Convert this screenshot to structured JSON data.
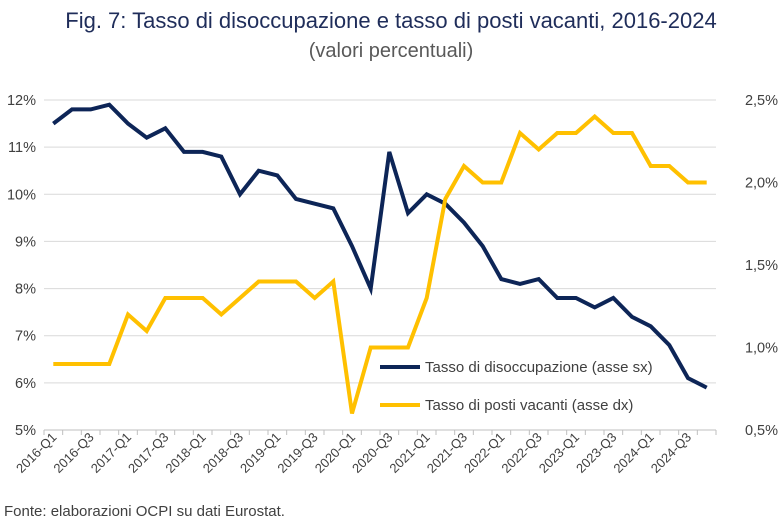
{
  "header": {
    "title": "Fig. 7: Tasso di disoccupazione e tasso di posti vacanti, 2016-2024",
    "subtitle": "(valori percentuali)"
  },
  "footer": {
    "source": "Fonte: elaborazioni OCPI su dati Eurostat."
  },
  "colors": {
    "unemployment": "#0d2557",
    "vacancy": "#ffc000",
    "grid": "#d9d9d9"
  },
  "chart_data": {
    "type": "line",
    "title": "Fig. 7: Tasso di disoccupazione e tasso di posti vacanti, 2016-2024",
    "subtitle": "(valori percentuali)",
    "categories": [
      "2016-Q1",
      "2016-Q2",
      "2016-Q3",
      "2016-Q4",
      "2017-Q1",
      "2017-Q2",
      "2017-Q3",
      "2017-Q4",
      "2018-Q1",
      "2018-Q2",
      "2018-Q3",
      "2018-Q4",
      "2019-Q1",
      "2019-Q2",
      "2019-Q3",
      "2019-Q4",
      "2020-Q1",
      "2020-Q2",
      "2020-Q3",
      "2020-Q4",
      "2021-Q1",
      "2021-Q2",
      "2021-Q3",
      "2021-Q4",
      "2022-Q1",
      "2022-Q2",
      "2022-Q3",
      "2022-Q4",
      "2023-Q1",
      "2023-Q2",
      "2023-Q3",
      "2023-Q4",
      "2024-Q1",
      "2024-Q2",
      "2024-Q3",
      "2024-Q4"
    ],
    "x_tick_labels": [
      "2016-Q1",
      "2016-Q3",
      "2017-Q1",
      "2017-Q3",
      "2018-Q1",
      "2018-Q3",
      "2019-Q1",
      "2019-Q3",
      "2020-Q1",
      "2020-Q3",
      "2021-Q1",
      "2021-Q3",
      "2022-Q1",
      "2022-Q3",
      "2023-Q1",
      "2023-Q3",
      "2024-Q1",
      "2024-Q3"
    ],
    "y_left": {
      "min": 5,
      "max": 12,
      "ticks": [
        "5%",
        "6%",
        "7%",
        "8%",
        "9%",
        "10%",
        "11%",
        "12%"
      ]
    },
    "y_right": {
      "min": 0.5,
      "max": 2.5,
      "ticks": [
        "0,5%",
        "1,0%",
        "1,5%",
        "2,0%",
        "2,5%"
      ]
    },
    "series": [
      {
        "name": "Tasso di disoccupazione (asse sx)",
        "axis": "left",
        "values": [
          11.5,
          11.8,
          11.8,
          11.9,
          11.5,
          11.2,
          11.4,
          10.9,
          10.9,
          10.8,
          10.0,
          10.5,
          10.4,
          9.9,
          9.8,
          9.7,
          8.9,
          8.0,
          10.9,
          9.6,
          10.0,
          9.8,
          9.4,
          8.9,
          8.2,
          8.1,
          8.2,
          7.8,
          7.8,
          7.6,
          7.8,
          7.4,
          7.2,
          6.8,
          6.1,
          5.9
        ]
      },
      {
        "name": "Tasso di posti vacanti (asse dx)",
        "axis": "right",
        "values": [
          0.9,
          0.9,
          0.9,
          0.9,
          1.2,
          1.1,
          1.3,
          1.3,
          1.3,
          1.2,
          1.3,
          1.4,
          1.4,
          1.4,
          1.3,
          1.4,
          0.6,
          1.0,
          1.0,
          1.0,
          1.3,
          1.9,
          2.1,
          2.0,
          2.0,
          2.3,
          2.2,
          2.3,
          2.3,
          2.4,
          2.3,
          2.3,
          2.1,
          2.1,
          2.0,
          2.0
        ]
      }
    ],
    "legend": "inside-bottom-right",
    "grid": true
  }
}
